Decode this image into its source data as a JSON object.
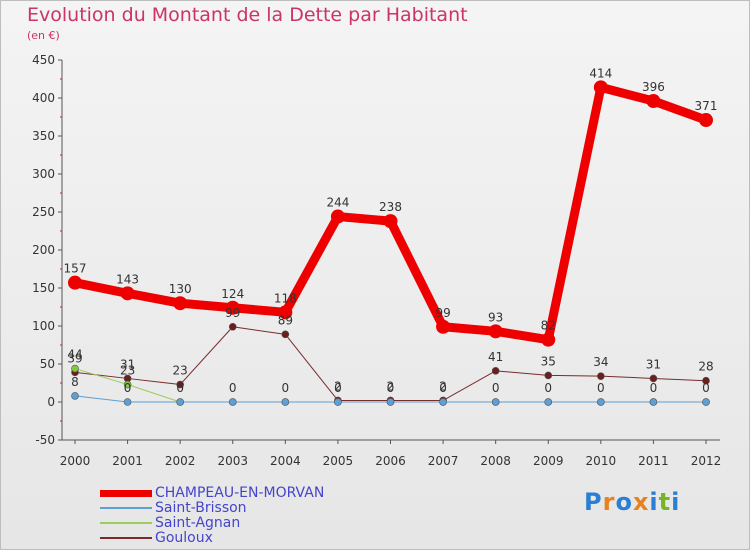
{
  "title": "Evolution du Montant de la Dette par Habitant",
  "unit_label": "(en €)",
  "logo": {
    "text": "Proxiti",
    "letters": [
      {
        "ch": "P",
        "color": "#2a7fd4"
      },
      {
        "ch": "r",
        "color": "#e8821e"
      },
      {
        "ch": "o",
        "color": "#2a7fd4"
      },
      {
        "ch": "x",
        "color": "#e8821e"
      },
      {
        "ch": "i",
        "color": "#2a7fd4"
      },
      {
        "ch": "t",
        "color": "#78b428"
      },
      {
        "ch": "i",
        "color": "#2a7fd4"
      }
    ]
  },
  "chart_data": {
    "type": "line",
    "title": "Evolution du Montant de la Dette par Habitant",
    "ylabel": "(en €)",
    "xlabel": "",
    "x": [
      "2000",
      "2001",
      "2002",
      "2003",
      "2004",
      "2005",
      "2006",
      "2007",
      "2008",
      "2009",
      "2010",
      "2011",
      "2012"
    ],
    "ylim": [
      -50,
      450
    ],
    "yticks": [
      -50,
      0,
      50,
      100,
      150,
      200,
      250,
      300,
      350,
      400,
      450
    ],
    "legend_position": "bottom-left",
    "grid": false,
    "series": [
      {
        "name": "CHAMPEAU-EN-MORVAN",
        "color": "#ee0000",
        "values": [
          157,
          143,
          130,
          124,
          118,
          244,
          238,
          99,
          93,
          82,
          414,
          396,
          371
        ]
      },
      {
        "name": "Saint-Brisson",
        "color": "#5f9fd3",
        "values": [
          8,
          0,
          0,
          0,
          0,
          0,
          0,
          0,
          0,
          0,
          0,
          0,
          0
        ]
      },
      {
        "name": "Saint-Agnan",
        "color": "#9acd5a",
        "values": [
          44,
          23,
          0,
          0,
          0,
          0,
          0,
          0,
          0,
          0,
          0,
          0,
          0
        ]
      },
      {
        "name": "Gouloux",
        "color": "#7a2a2a",
        "values": [
          39,
          31,
          23,
          99,
          89,
          2,
          2,
          2,
          41,
          35,
          34,
          31,
          28
        ]
      }
    ],
    "data_labels": {
      "CHAMPEAU-EN-MORVAN": [
        "157",
        "143",
        "130",
        "124",
        "118",
        "244",
        "238",
        "99",
        "93",
        "82",
        "414",
        "396",
        "371"
      ],
      "Saint-Brisson": [
        "8",
        "0",
        "0",
        "0",
        "0",
        "0",
        "0",
        "0",
        "0",
        "0",
        "0",
        "0",
        "0"
      ],
      "Saint-Agnan": [
        "44",
        "23",
        "",
        "",
        "",
        "",
        "",
        "",
        "",
        "",
        "",
        "",
        ""
      ],
      "Gouloux": [
        "39",
        "31",
        "23",
        "99",
        "89",
        "2",
        "2",
        "2",
        "41",
        "35",
        "34",
        "31",
        "28"
      ]
    }
  }
}
